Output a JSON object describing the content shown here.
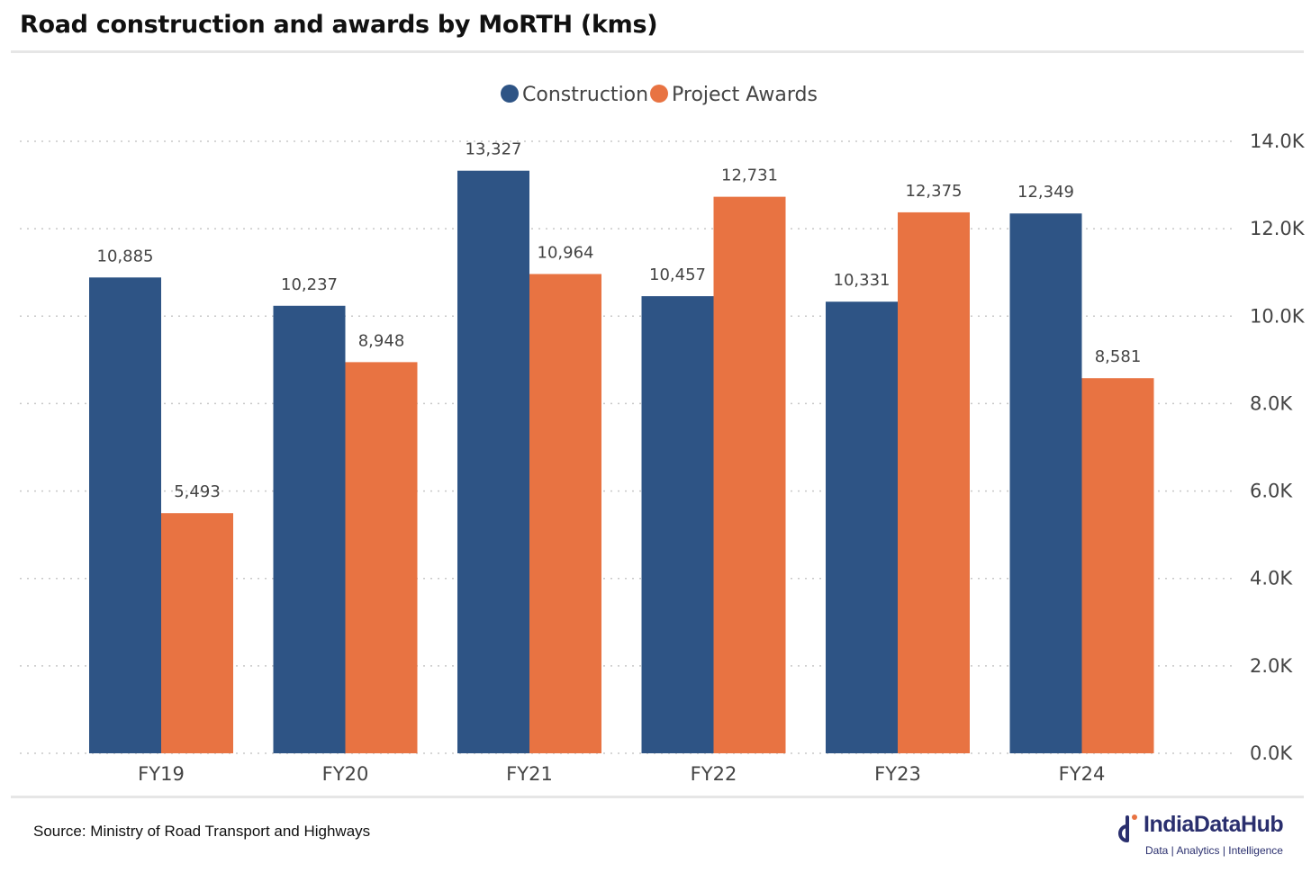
{
  "title": "Road construction and awards by MoRTH (kms)",
  "source": "Source: Ministry of Road Transport and Highways",
  "logo": {
    "name": "IndiaDataHub",
    "tagline": "Data | Analytics | Intelligence"
  },
  "colors": {
    "construction": "#2e5485",
    "awards": "#e87342",
    "grid": "#c8c8c8",
    "text": "#444444",
    "brand": "#2a2f6e"
  },
  "chart_data": {
    "type": "bar",
    "title": "Road construction and awards by MoRTH (kms)",
    "categories": [
      "FY19",
      "FY20",
      "FY21",
      "FY22",
      "FY23",
      "FY24"
    ],
    "series": [
      {
        "name": "Construction",
        "color": "#2e5485",
        "values": [
          10885,
          10237,
          13327,
          10457,
          10331,
          12349
        ],
        "labels": [
          "10,885",
          "10,237",
          "13,327",
          "10,457",
          "10,331",
          "12,349"
        ]
      },
      {
        "name": "Project Awards",
        "color": "#e87342",
        "values": [
          5493,
          8948,
          10964,
          12731,
          12375,
          8581
        ],
        "labels": [
          "5,493",
          "8,948",
          "10,964",
          "12,731",
          "12,375",
          "8,581"
        ]
      }
    ],
    "ylim": [
      0,
      14000
    ],
    "yticks": [
      0,
      2000,
      4000,
      6000,
      8000,
      10000,
      12000,
      14000
    ],
    "ytick_labels": [
      "0.0K",
      "2.0K",
      "4.0K",
      "6.0K",
      "8.0K",
      "10.0K",
      "12.0K",
      "14.0K"
    ],
    "yaxis_side": "right",
    "xlabel": "",
    "ylabel": "",
    "legend_position": "top-center",
    "grid": true
  }
}
